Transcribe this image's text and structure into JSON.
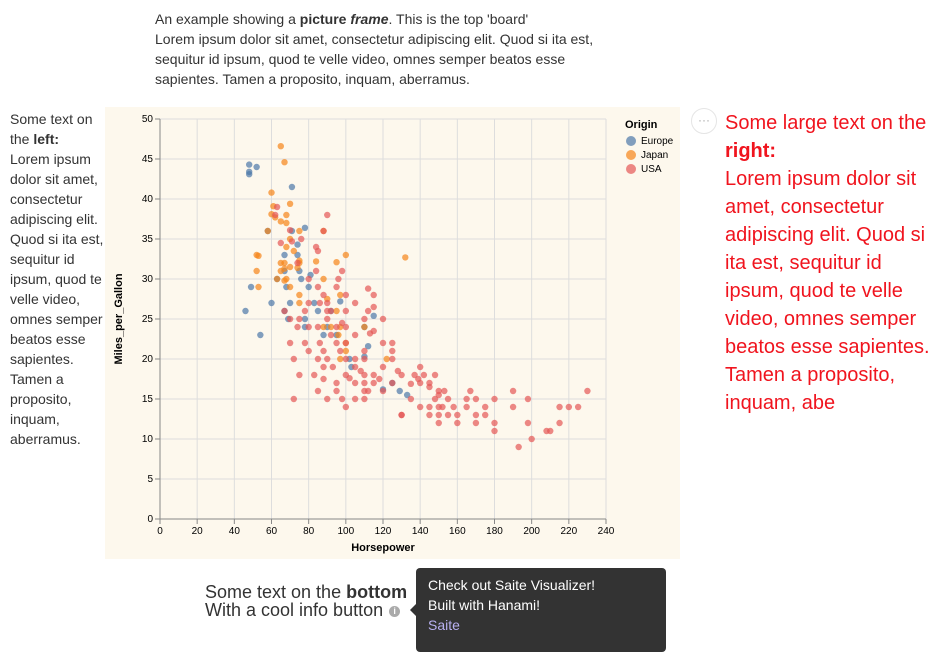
{
  "top": {
    "intro": "An example showing a ",
    "b1": "picture",
    "sp": " ",
    "b2": "frame",
    "rest": ". This is the top 'board'",
    "lorem": "Lorem ipsum dolor sit amet, consectetur adipiscing elit. Quod si ita est, sequitur id ipsum, quod te velle video, omnes semper beatos esse sapientes. Tamen a proposito, inquam, aberramus."
  },
  "left": {
    "intro": "Some text on the ",
    "bold": "left:",
    "lorem": "Lorem ipsum dolor sit amet, consectetur adipiscing elit. Quod si ita est, sequitur id ipsum, quod te velle video, omnes semper beatos esse sapientes. Tamen a proposito, inquam, aberramus."
  },
  "right": {
    "intro": "Some large text on the ",
    "bold": "right:",
    "lorem": "Lorem ipsum dolor sit amet, consectetur adipiscing elit. Quod si ita est, sequitur id ipsum, quod te velle video, omnes semper beatos esse sapientes. Tamen a proposito, inquam, abe"
  },
  "menu": {
    "icon": "ellipsis-icon",
    "label": "···"
  },
  "bottom": {
    "line1": "Some text on the ",
    "bold": "bottom",
    "line2": "With a cool info button",
    "info_icon": "info-icon"
  },
  "tooltip": {
    "line1": "Check out Saite Visualizer!",
    "line2": "Built with Hanami!",
    "link": "Saite"
  },
  "chart_data": {
    "type": "scatter",
    "xlabel": "Horsepower",
    "ylabel": "Miles_per_Gallon",
    "xlim": [
      0,
      240
    ],
    "ylim": [
      0,
      50
    ],
    "xticks": [
      0,
      20,
      40,
      60,
      80,
      100,
      120,
      140,
      160,
      180,
      200,
      220,
      240
    ],
    "yticks": [
      0,
      5,
      10,
      15,
      20,
      25,
      30,
      35,
      40,
      45,
      50
    ],
    "legend": {
      "title": "Origin",
      "position": "right",
      "entries": [
        "Europe",
        "Japan",
        "USA"
      ]
    },
    "colors": {
      "Europe": "#4c78a8",
      "Japan": "#f58518",
      "USA": "#e45756"
    },
    "series": [
      {
        "name": "Europe",
        "points": [
          [
            46,
            26
          ],
          [
            48,
            43.1
          ],
          [
            48,
            44.3
          ],
          [
            48,
            43.4
          ],
          [
            52,
            44
          ],
          [
            49,
            29
          ],
          [
            67,
            31
          ],
          [
            71,
            41.5
          ],
          [
            60,
            27
          ],
          [
            76,
            30
          ],
          [
            67,
            33
          ],
          [
            78,
            25
          ],
          [
            90,
            24
          ],
          [
            97,
            27.2
          ],
          [
            102,
            20
          ],
          [
            110,
            24
          ],
          [
            115,
            25.4
          ],
          [
            120,
            16.2
          ],
          [
            125,
            17
          ],
          [
            133,
            15.5
          ],
          [
            103,
            19
          ],
          [
            71,
            36
          ],
          [
            58,
            36
          ],
          [
            75,
            31
          ],
          [
            74,
            33
          ],
          [
            88,
            23
          ],
          [
            83,
            27
          ],
          [
            95,
            23
          ],
          [
            81,
            30.5
          ],
          [
            80,
            29
          ],
          [
            110,
            20.3
          ],
          [
            129,
            16
          ],
          [
            68,
            29
          ],
          [
            78,
            24
          ],
          [
            92,
            26
          ],
          [
            70,
            27
          ],
          [
            63,
            30
          ],
          [
            78,
            36.4
          ],
          [
            74,
            34.3
          ],
          [
            85,
            26
          ],
          [
            67,
            26
          ],
          [
            112,
            21.6
          ],
          [
            69,
            25
          ],
          [
            54,
            23
          ]
        ]
      },
      {
        "name": "Japan",
        "points": [
          [
            65,
            46.6
          ],
          [
            67,
            44.6
          ],
          [
            60,
            40.8
          ],
          [
            70,
            39.4
          ],
          [
            52,
            33
          ],
          [
            53,
            32.9
          ],
          [
            52,
            31
          ],
          [
            65,
            32
          ],
          [
            68,
            38
          ],
          [
            68,
            37
          ],
          [
            65,
            37.2
          ],
          [
            60,
            38.1
          ],
          [
            61,
            39.1
          ],
          [
            58,
            36
          ],
          [
            62,
            37.7
          ],
          [
            68,
            34
          ],
          [
            70,
            35
          ],
          [
            72,
            33.5
          ],
          [
            75,
            32.3
          ],
          [
            75,
            36
          ],
          [
            88,
            36
          ],
          [
            95,
            32.1
          ],
          [
            100,
            33
          ],
          [
            132,
            32.7
          ],
          [
            84,
            32.2
          ],
          [
            75,
            27
          ],
          [
            70,
            31.5
          ],
          [
            97,
            28
          ],
          [
            75,
            28
          ],
          [
            88,
            24
          ],
          [
            92,
            24
          ],
          [
            96,
            23
          ],
          [
            100,
            22
          ],
          [
            90,
            27.5
          ],
          [
            95,
            26
          ],
          [
            110,
            24
          ],
          [
            97,
            20
          ],
          [
            122,
            20
          ],
          [
            67,
            29.8
          ],
          [
            70,
            29
          ],
          [
            63,
            30
          ],
          [
            74,
            31.4
          ],
          [
            67,
            32
          ],
          [
            65,
            31
          ],
          [
            53,
            29
          ],
          [
            88,
            30
          ],
          [
            97,
            24
          ],
          [
            100,
            21
          ],
          [
            68,
            30
          ],
          [
            67,
            31.3
          ],
          [
            75,
            32
          ]
        ]
      },
      {
        "name": "USA",
        "points": [
          [
            62,
            38
          ],
          [
            63,
            39
          ],
          [
            65,
            34.5
          ],
          [
            70,
            36.1
          ],
          [
            71,
            34.7
          ],
          [
            74,
            32
          ],
          [
            76,
            35
          ],
          [
            80,
            30
          ],
          [
            84,
            34
          ],
          [
            85,
            33.5
          ],
          [
            88,
            36
          ],
          [
            90,
            38
          ],
          [
            84,
            31
          ],
          [
            85,
            29
          ],
          [
            86,
            27
          ],
          [
            88,
            28
          ],
          [
            90,
            27
          ],
          [
            92,
            26
          ],
          [
            95,
            29
          ],
          [
            96,
            30
          ],
          [
            98,
            31
          ],
          [
            100,
            28
          ],
          [
            105,
            27
          ],
          [
            110,
            25
          ],
          [
            112,
            26
          ],
          [
            115,
            28
          ],
          [
            120,
            22
          ],
          [
            125,
            21
          ],
          [
            130,
            18
          ],
          [
            90,
            25
          ],
          [
            92,
            23
          ],
          [
            95,
            22
          ],
          [
            97,
            21
          ],
          [
            100,
            20
          ],
          [
            105,
            19
          ],
          [
            110,
            18
          ],
          [
            100,
            18
          ],
          [
            105,
            17
          ],
          [
            110,
            16
          ],
          [
            90,
            20
          ],
          [
            88,
            19
          ],
          [
            86,
            22
          ],
          [
            85,
            24
          ],
          [
            80,
            27
          ],
          [
            78,
            22
          ],
          [
            75,
            25
          ],
          [
            72,
            15
          ],
          [
            67,
            26
          ],
          [
            70,
            25
          ],
          [
            70,
            22
          ],
          [
            72,
            20
          ],
          [
            75,
            18
          ],
          [
            80,
            21
          ],
          [
            83,
            18
          ],
          [
            85,
            16
          ],
          [
            88,
            17.5
          ],
          [
            90,
            15
          ],
          [
            95,
            16
          ],
          [
            98,
            15
          ],
          [
            100,
            14
          ],
          [
            105,
            15
          ],
          [
            110,
            17
          ],
          [
            110,
            15
          ],
          [
            112,
            16
          ],
          [
            115,
            18
          ],
          [
            120,
            19
          ],
          [
            125,
            17
          ],
          [
            130,
            13
          ],
          [
            135,
            15
          ],
          [
            137,
            18
          ],
          [
            140,
            14
          ],
          [
            140,
            19
          ],
          [
            145,
            17
          ],
          [
            145,
            14
          ],
          [
            145,
            13
          ],
          [
            148,
            15
          ],
          [
            150,
            14
          ],
          [
            150,
            16
          ],
          [
            150,
            13
          ],
          [
            152,
            14
          ],
          [
            153,
            16
          ],
          [
            155,
            15
          ],
          [
            160,
            13
          ],
          [
            165,
            15
          ],
          [
            165,
            14
          ],
          [
            167,
            16
          ],
          [
            170,
            13
          ],
          [
            170,
            15
          ],
          [
            175,
            14
          ],
          [
            175,
            13
          ],
          [
            180,
            12
          ],
          [
            180,
            15
          ],
          [
            190,
            16
          ],
          [
            190,
            14
          ],
          [
            193,
            9
          ],
          [
            198,
            12
          ],
          [
            198,
            15
          ],
          [
            200,
            10
          ],
          [
            208,
            11
          ],
          [
            210,
            11
          ],
          [
            215,
            14
          ],
          [
            215,
            12
          ],
          [
            220,
            14
          ],
          [
            225,
            14
          ],
          [
            230,
            16
          ],
          [
            150,
            12
          ],
          [
            160,
            12
          ],
          [
            170,
            12
          ],
          [
            180,
            11
          ],
          [
            140,
            17
          ],
          [
            142,
            18
          ],
          [
            148,
            18
          ],
          [
            155,
            13
          ],
          [
            158,
            14
          ],
          [
            130,
            13
          ],
          [
            100,
            22
          ],
          [
            105,
            20
          ],
          [
            110,
            20
          ],
          [
            115,
            17
          ],
          [
            120,
            16
          ],
          [
            125,
            20
          ],
          [
            95,
            17
          ],
          [
            85,
            20
          ],
          [
            78,
            26
          ],
          [
            74,
            24
          ],
          [
            80,
            24
          ],
          [
            88,
            21
          ],
          [
            93,
            19
          ],
          [
            102,
            17.6
          ],
          [
            108,
            18.5
          ],
          [
            118,
            17.5
          ],
          [
            128,
            18.5
          ],
          [
            135,
            16.9
          ],
          [
            139,
            17.5
          ],
          [
            145,
            16.5
          ],
          [
            150,
            15.5
          ],
          [
            98,
            24.5
          ],
          [
            105,
            23
          ],
          [
            113,
            23.2
          ],
          [
            120,
            25
          ],
          [
            115,
            26.5
          ],
          [
            125,
            22
          ],
          [
            112,
            28.8
          ],
          [
            100,
            24
          ],
          [
            95,
            24
          ],
          [
            90,
            26
          ],
          [
            110,
            21
          ],
          [
            115,
            23.5
          ],
          [
            100,
            26
          ]
        ]
      }
    ]
  }
}
